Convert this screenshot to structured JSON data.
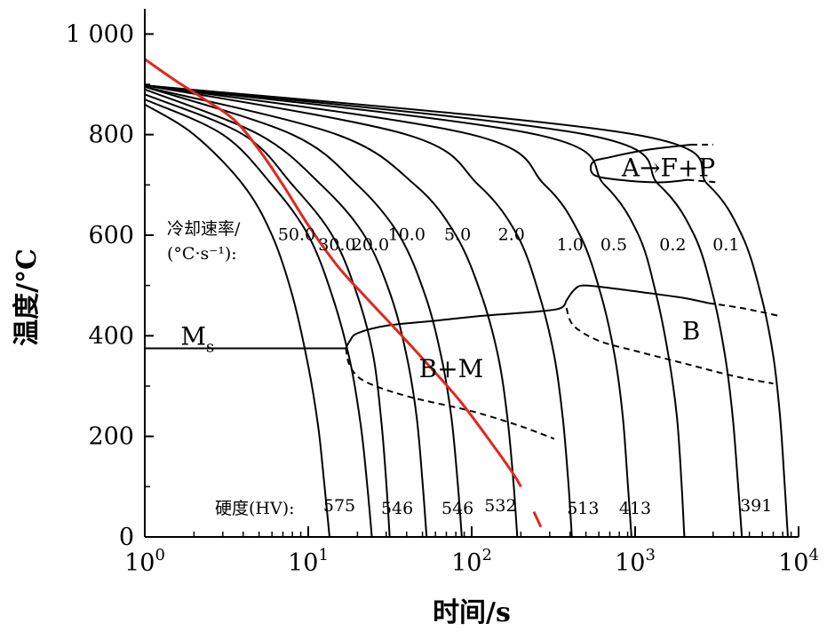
{
  "chart_data": {
    "type": "line",
    "title": "",
    "xlabel": "时间/s",
    "ylabel": "温度/°C",
    "x_scale": "log",
    "xlim": [
      1,
      10000
    ],
    "ylim": [
      0,
      1050
    ],
    "grid": false,
    "x_ticks": [
      {
        "value": 1,
        "base": "10",
        "exp": "0"
      },
      {
        "value": 10,
        "base": "10",
        "exp": "1"
      },
      {
        "value": 100,
        "base": "10",
        "exp": "2"
      },
      {
        "value": 1000,
        "base": "10",
        "exp": "3"
      },
      {
        "value": 10000,
        "base": "10",
        "exp": "4"
      }
    ],
    "y_ticks": [
      {
        "value": 0,
        "label": "0"
      },
      {
        "value": 200,
        "label": "200"
      },
      {
        "value": 400,
        "label": "400"
      },
      {
        "value": 600,
        "label": "600"
      },
      {
        "value": 800,
        "label": "800"
      },
      {
        "value": 1000,
        "label": "1 000"
      }
    ],
    "cooling_rate_label_line1": "冷却速率/",
    "cooling_rate_label_line2": "(°C·s⁻¹):",
    "hardness_label": "硬度(HV):",
    "cooling_curves": [
      {
        "rate": "50.0",
        "x": [
          1,
          2,
          4,
          6,
          8,
          10,
          11.5,
          12.5,
          13.5
        ],
        "y": [
          860,
          800,
          700,
          600,
          480,
          340,
          220,
          110,
          0
        ]
      },
      {
        "rate": "30.0",
        "x": [
          1,
          3,
          6,
          10,
          14,
          18,
          21,
          23,
          24.5
        ],
        "y": [
          870,
          800,
          700,
          600,
          480,
          350,
          220,
          100,
          0
        ]
      },
      {
        "rate": "20.0",
        "x": [
          1,
          4,
          8,
          14,
          20,
          25,
          28,
          30,
          31.5
        ],
        "y": [
          880,
          800,
          700,
          600,
          480,
          360,
          230,
          110,
          0
        ]
      },
      {
        "rate": "10.0",
        "x": [
          1,
          5,
          12,
          22,
          32,
          40,
          46,
          50,
          53
        ],
        "y": [
          890,
          800,
          700,
          600,
          480,
          360,
          240,
          110,
          0
        ]
      },
      {
        "rate": "5.0",
        "x": [
          1,
          8,
          20,
          36,
          52,
          65,
          75,
          82,
          87
        ],
        "y": [
          895,
          800,
          700,
          600,
          480,
          360,
          240,
          110,
          0
        ]
      },
      {
        "rate": "2.0",
        "x": [
          1,
          15,
          45,
          80,
          115,
          145,
          165,
          180,
          190
        ],
        "y": [
          895,
          800,
          700,
          600,
          480,
          360,
          240,
          110,
          0
        ]
      },
      {
        "rate": "1.0",
        "x": [
          1,
          40,
          110,
          190,
          260,
          320,
          360,
          390,
          410
        ],
        "y": [
          898,
          800,
          700,
          600,
          480,
          360,
          240,
          110,
          0
        ]
      },
      {
        "rate": "0.5",
        "x": [
          1,
          100,
          280,
          460,
          620,
          750,
          840,
          900,
          950
        ],
        "y": [
          898,
          800,
          700,
          600,
          480,
          360,
          240,
          110,
          0
        ]
      },
      {
        "rate": "0.2",
        "x": [
          1,
          250,
          650,
          1050,
          1350,
          1600,
          1800,
          1920,
          2000
        ],
        "y": [
          898,
          800,
          700,
          600,
          480,
          360,
          240,
          110,
          0
        ]
      },
      {
        "rate": "0.1",
        "x": [
          1,
          500,
          1400,
          2300,
          3000,
          3550,
          3950,
          4250,
          4500
        ],
        "y": [
          898,
          800,
          700,
          600,
          480,
          360,
          240,
          110,
          0
        ]
      },
      {
        "rate": "",
        "x": [
          1,
          1000,
          2800,
          4500,
          5900,
          7000,
          7700,
          8200,
          8600
        ],
        "y": [
          898,
          800,
          700,
          600,
          480,
          360,
          240,
          110,
          0
        ]
      }
    ],
    "rate_labels": [
      {
        "text": "50.0",
        "x": 8.5,
        "y": 590
      },
      {
        "text": "30.0",
        "x": 15,
        "y": 570
      },
      {
        "text": "20.0",
        "x": 24,
        "y": 570
      },
      {
        "text": "10.0",
        "x": 40,
        "y": 590
      },
      {
        "text": "5.0",
        "x": 82,
        "y": 590
      },
      {
        "text": "2.0",
        "x": 175,
        "y": 590
      },
      {
        "text": "1.0",
        "x": 400,
        "y": 570
      },
      {
        "text": "0.5",
        "x": 740,
        "y": 570
      },
      {
        "text": "0.2",
        "x": 1700,
        "y": 570
      },
      {
        "text": "0.1",
        "x": 3600,
        "y": 570
      }
    ],
    "hardness_values": [
      {
        "text": "575",
        "x": 15.5,
        "y": 65
      },
      {
        "text": "546",
        "x": 35,
        "y": 60
      },
      {
        "text": "546",
        "x": 82,
        "y": 60
      },
      {
        "text": "532",
        "x": 150,
        "y": 65
      },
      {
        "text": "513",
        "x": 480,
        "y": 60
      },
      {
        "text": "413",
        "x": 1000,
        "y": 60
      },
      {
        "text": "391",
        "x": 5500,
        "y": 65
      }
    ],
    "ms_line": {
      "x": [
        1,
        17
      ],
      "y": [
        375,
        375
      ]
    },
    "bm_start": {
      "x": [
        17,
        18,
        20,
        30,
        60,
        120,
        250,
        350,
        380
      ],
      "y": [
        375,
        390,
        405,
        420,
        430,
        440,
        448,
        455,
        470
      ]
    },
    "bm_end_dashed": {
      "x": [
        17,
        18,
        22,
        40,
        100,
        200,
        320
      ],
      "y": [
        375,
        340,
        310,
        280,
        250,
        220,
        195
      ]
    },
    "b_start": {
      "x": [
        380,
        420,
        480,
        700,
        1200,
        2000,
        2800
      ],
      "y": [
        470,
        490,
        500,
        495,
        485,
        475,
        465
      ]
    },
    "b_start_dashed": {
      "x": [
        2800,
        4500,
        7500
      ],
      "y": [
        465,
        455,
        440
      ]
    },
    "b_end_dashed": {
      "x": [
        380,
        420,
        600,
        1000,
        2000,
        4000,
        7000
      ],
      "y": [
        455,
        420,
        390,
        370,
        345,
        320,
        305
      ]
    },
    "fp_start": {
      "x": [
        2200,
        1200,
        700,
        550,
        560,
        800,
        1400,
        2100
      ],
      "y": [
        780,
        770,
        755,
        745,
        720,
        710,
        705,
        710
      ]
    },
    "fp_start_dashed": {
      "x": [
        2200,
        3000
      ],
      "y": [
        780,
        780
      ]
    },
    "fp_end_dashed": {
      "x": [
        2100,
        3200
      ],
      "y": [
        710,
        705
      ]
    },
    "red_curve": {
      "x": [
        1,
        1.5,
        2.2,
        3.5,
        5,
        7,
        10,
        15,
        22,
        35,
        55,
        85,
        130,
        180,
        200
      ],
      "y": [
        950,
        910,
        875,
        830,
        770,
        700,
        620,
        540,
        480,
        410,
        340,
        270,
        190,
        125,
        100
      ]
    },
    "red_curve_tail": {
      "x": [
        240,
        265
      ],
      "y": [
        50,
        20
      ]
    },
    "annotations": [
      {
        "text": "A→F+P",
        "x": 1600,
        "y": 735
      },
      {
        "text": "B",
        "x": 2200,
        "y": 410
      },
      {
        "text": "B+M",
        "x": 75,
        "y": 335
      }
    ],
    "ms_label": {
      "main": "M",
      "sub": "s",
      "x": 2.1,
      "y": 400
    },
    "colors": {
      "curves": "#000000",
      "red": "#e0281e"
    }
  }
}
